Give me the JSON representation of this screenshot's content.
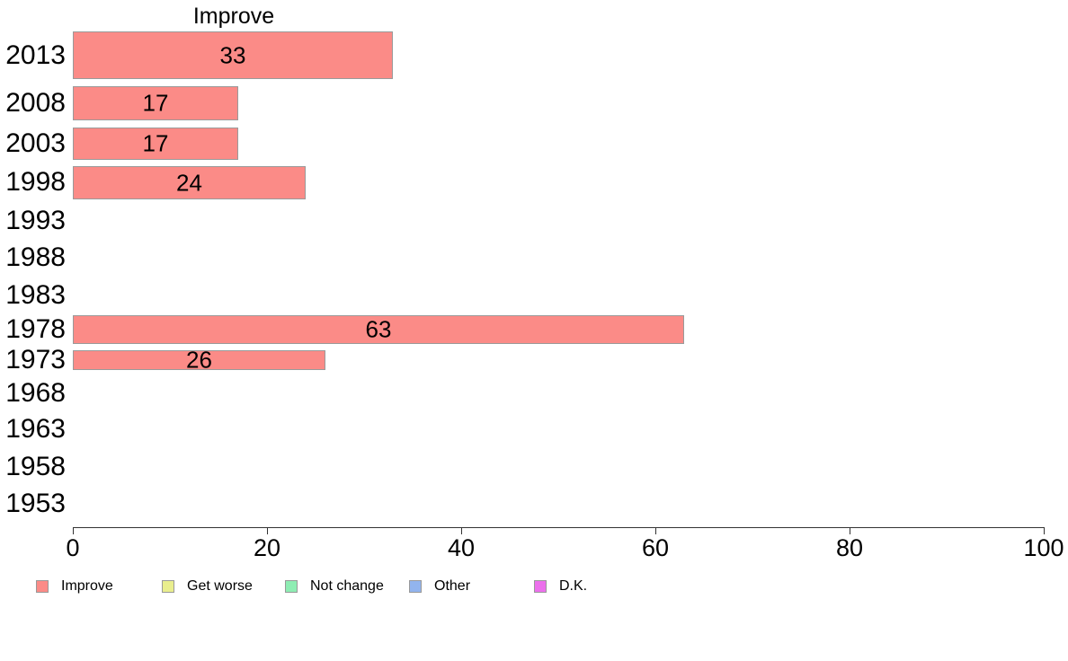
{
  "chart_data": {
    "type": "bar",
    "orientation": "horizontal",
    "title": "Improve",
    "categories": [
      "2013",
      "2008",
      "2003",
      "1998",
      "1993",
      "1988",
      "1983",
      "1978",
      "1973",
      "1968",
      "1963",
      "1958",
      "1953"
    ],
    "values": [
      33,
      17,
      17,
      24,
      null,
      null,
      null,
      63,
      26,
      null,
      null,
      null,
      null
    ],
    "value_labels_inside_bars": true,
    "xlim": [
      0,
      100
    ],
    "x_ticks": [
      0,
      20,
      40,
      60,
      80,
      100
    ],
    "grid": false,
    "bar_color": "#FB8B87",
    "bar_border_color": "#9A9A9A",
    "legend_position": "bottom",
    "legend": [
      {
        "label": "Improve",
        "color": "#FB8B87"
      },
      {
        "label": "Get worse",
        "color": "#E9EE8E"
      },
      {
        "label": "Not change",
        "color": "#8EEDB3"
      },
      {
        "label": "Other",
        "color": "#92B4EE"
      },
      {
        "label": "D.K.",
        "color": "#EC70EC"
      }
    ]
  }
}
